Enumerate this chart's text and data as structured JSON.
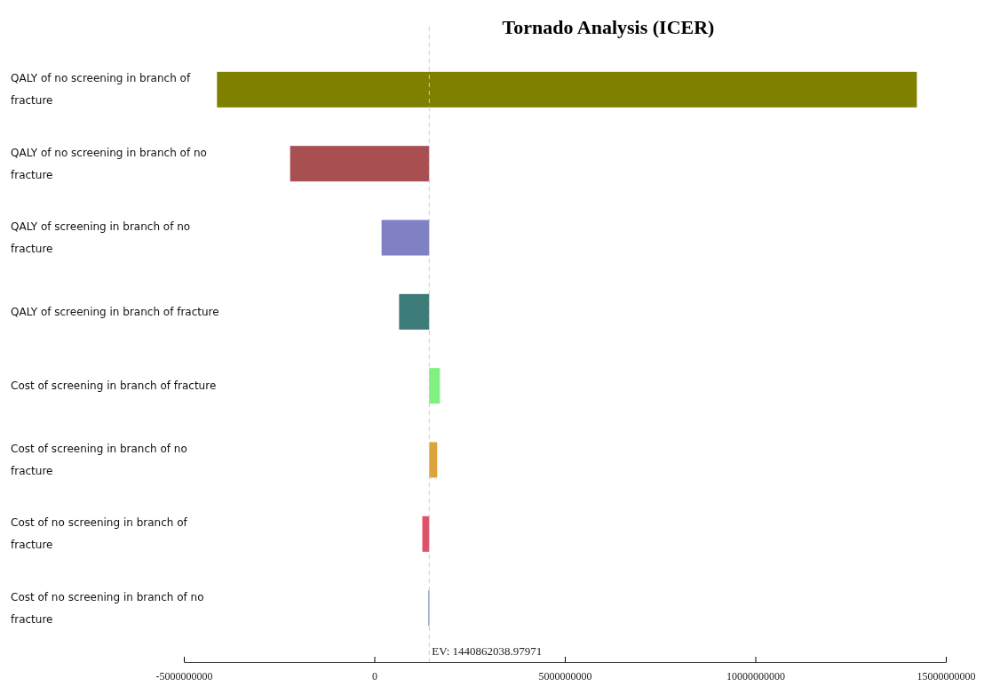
{
  "chart_data": {
    "type": "bar",
    "orientation": "horizontal",
    "title": "Tornado Analysis (ICER)",
    "categories": [
      "QALY of no screening in branch of  fracture",
      "QALY of no screening in branch of no fracture",
      "QALY of screening in branch of no fracture",
      "QALY of screening in branch of fracture",
      "Cost of screening in branch of fracture",
      "Cost of screening in branch of no fracture",
      "Cost of no screening in branch of fracture",
      "Cost of no screening in branch of no fracture"
    ],
    "base": [
      -4130000000,
      -2210000000,
      190000000,
      650000000,
      1440000000,
      1440000000,
      1260000000,
      1420000000
    ],
    "values": [
      18370000000,
      3650000000,
      1250000000,
      790000000,
      280000000,
      210000000,
      180000000,
      20000000
    ],
    "colors": [
      "#808000",
      "#a84f52",
      "#8080c4",
      "#3d7b78",
      "#80f080",
      "#dca43a",
      "#e0506a",
      "#5078a8"
    ],
    "xlim": [
      -5000000000,
      15000000000
    ],
    "xticks": [
      -5000000000,
      0,
      5000000000,
      10000000000,
      15000000000
    ],
    "ref_lines": [
      {
        "axis": "x",
        "value": 1440862038.97971,
        "label": "EV: 1440862038.97971",
        "color": "#c8c8c8"
      }
    ],
    "line_style": "dashed"
  }
}
